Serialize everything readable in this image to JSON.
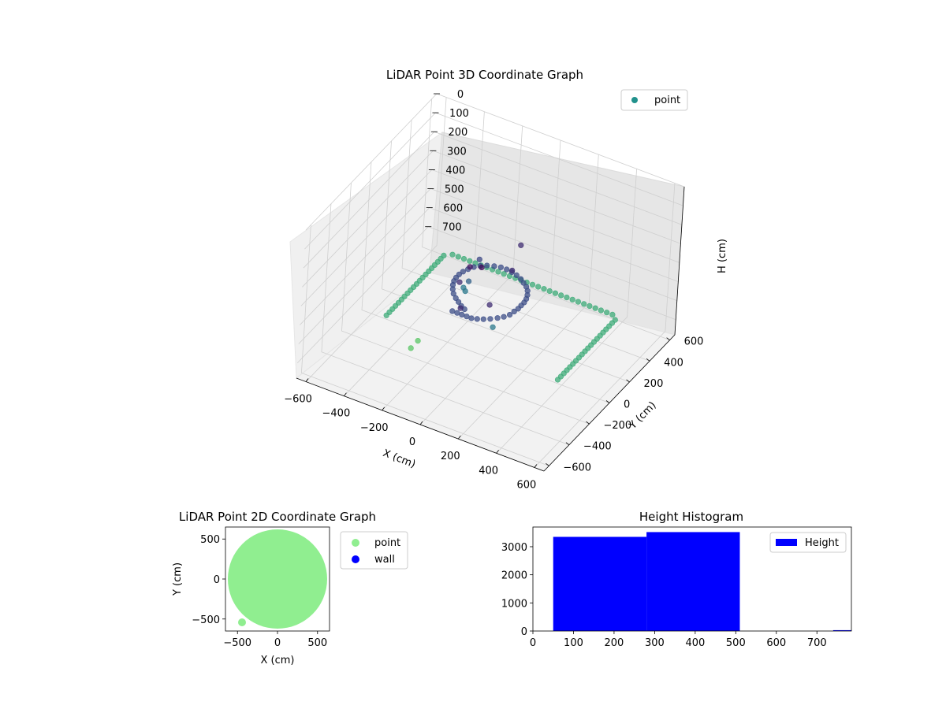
{
  "chart_data": [
    {
      "type": "scatter3d",
      "title": "LiDAR Point 3D Coordinate Graph",
      "xlabel": "X (cm)",
      "ylabel": "Y (cm)",
      "zlabel": "H (cm)",
      "xlim": [
        -650,
        650
      ],
      "ylim": [
        -650,
        650
      ],
      "zlim": [
        0,
        780
      ],
      "z_inverted": true,
      "xticks": [
        "−600",
        "−400",
        "−200",
        "0",
        "200",
        "400",
        "600"
      ],
      "yticks": [
        "−600",
        "−400",
        "−200",
        "0",
        "200",
        "400",
        "600"
      ],
      "zticks": [
        "0",
        "100",
        "200",
        "300",
        "400",
        "500",
        "600",
        "700"
      ],
      "legend": {
        "entries": [
          "point"
        ],
        "placement": "top-right"
      },
      "colormap": "viridis",
      "series": [
        {
          "name": "point",
          "color": "#21918c",
          "points": [
            [
              -280,
              -150,
              720
            ],
            [
              90,
              -130,
              520
            ],
            [
              -140,
              60,
              470
            ],
            [
              -140,
              160,
              410
            ],
            [
              -280,
              -220,
              720
            ],
            [
              -170,
              70,
              520
            ],
            [
              -150,
              50,
              520
            ],
            [
              -60,
              -260,
              420
            ],
            [
              -35,
              -260,
              420
            ],
            [
              -10,
              -260,
              420
            ],
            [
              15,
              -260,
              420
            ],
            [
              40,
              -260,
              420
            ],
            [
              65,
              -250,
              420
            ],
            [
              90,
              -235,
              420
            ],
            [
              115,
              -215,
              420
            ],
            [
              140,
              -190,
              420
            ],
            [
              160,
              -165,
              420
            ],
            [
              175,
              -135,
              420
            ],
            [
              180,
              -100,
              420
            ],
            [
              185,
              -70,
              420
            ],
            [
              185,
              -40,
              420
            ],
            [
              185,
              -10,
              420
            ],
            [
              180,
              20,
              420
            ],
            [
              170,
              50,
              420
            ],
            [
              155,
              80,
              420
            ],
            [
              135,
              105,
              420
            ],
            [
              110,
              125,
              420
            ],
            [
              85,
              145,
              420
            ],
            [
              55,
              160,
              420
            ],
            [
              25,
              170,
              420
            ],
            [
              -5,
              175,
              420
            ],
            [
              -35,
              175,
              420
            ],
            [
              -65,
              165,
              420
            ],
            [
              -95,
              150,
              420
            ],
            [
              -120,
              130,
              420
            ],
            [
              -140,
              105,
              420
            ],
            [
              -155,
              75,
              420
            ],
            [
              -165,
              45,
              420
            ],
            [
              -170,
              15,
              420
            ],
            [
              -170,
              -15,
              420
            ],
            [
              -165,
              -45,
              420
            ],
            [
              -155,
              -75,
              420
            ],
            [
              -140,
              -105,
              420
            ],
            [
              -120,
              -135,
              420
            ],
            [
              -95,
              -160,
              420
            ],
            [
              -70,
              -180,
              420
            ],
            [
              -45,
              -200,
              420
            ],
            [
              -20,
              -215,
              420
            ],
            [
              100,
              -200,
              360
            ],
            [
              -100,
              -120,
              360
            ],
            [
              60,
              100,
              360
            ],
            [
              0,
              -300,
              360
            ],
            [
              0,
              300,
              360
            ],
            [
              -30,
              -40,
              300
            ],
            [
              -90,
              -40,
              320
            ],
            [
              -450,
              -150,
              650
            ],
            [
              -450,
              -120,
              650
            ],
            [
              -450,
              -90,
              650
            ],
            [
              -450,
              -60,
              650
            ],
            [
              -450,
              -30,
              650
            ],
            [
              -450,
              0,
              650
            ],
            [
              -450,
              30,
              650
            ],
            [
              -450,
              60,
              650
            ],
            [
              -450,
              90,
              650
            ],
            [
              -450,
              120,
              650
            ],
            [
              -450,
              150,
              650
            ],
            [
              -450,
              180,
              650
            ],
            [
              -450,
              210,
              650
            ],
            [
              -450,
              240,
              650
            ],
            [
              -450,
              270,
              650
            ],
            [
              -450,
              300,
              650
            ],
            [
              -450,
              330,
              650
            ],
            [
              -450,
              360,
              650
            ],
            [
              -450,
              390,
              650
            ],
            [
              -450,
              420,
              650
            ],
            [
              -420,
              450,
              650
            ],
            [
              -390,
              450,
              650
            ],
            [
              -360,
              450,
              650
            ],
            [
              -330,
              450,
              650
            ],
            [
              -300,
              450,
              650
            ],
            [
              -270,
              450,
              650
            ],
            [
              -240,
              450,
              650
            ],
            [
              -210,
              450,
              650
            ],
            [
              -180,
              450,
              650
            ],
            [
              -150,
              450,
              650
            ],
            [
              -120,
              450,
              650
            ],
            [
              -90,
              450,
              650
            ],
            [
              -60,
              450,
              650
            ],
            [
              -30,
              450,
              650
            ],
            [
              0,
              450,
              650
            ],
            [
              30,
              450,
              650
            ],
            [
              60,
              450,
              650
            ],
            [
              90,
              450,
              650
            ],
            [
              120,
              450,
              650
            ],
            [
              150,
              450,
              650
            ],
            [
              180,
              450,
              650
            ],
            [
              210,
              450,
              650
            ],
            [
              240,
              450,
              650
            ],
            [
              270,
              450,
              650
            ],
            [
              300,
              450,
              650
            ],
            [
              330,
              450,
              650
            ],
            [
              360,
              450,
              650
            ],
            [
              390,
              450,
              650
            ],
            [
              420,
              450,
              650
            ],
            [
              450,
              420,
              650
            ],
            [
              450,
              390,
              650
            ],
            [
              450,
              360,
              650
            ],
            [
              450,
              330,
              650
            ],
            [
              450,
              300,
              650
            ],
            [
              450,
              270,
              650
            ],
            [
              450,
              240,
              650
            ],
            [
              450,
              210,
              650
            ],
            [
              450,
              180,
              650
            ],
            [
              450,
              150,
              650
            ],
            [
              450,
              120,
              650
            ],
            [
              450,
              90,
              650
            ],
            [
              450,
              60,
              650
            ],
            [
              450,
              30,
              650
            ],
            [
              450,
              0,
              650
            ],
            [
              450,
              -30,
              650
            ],
            [
              450,
              -60,
              650
            ],
            [
              450,
              -90,
              650
            ],
            [
              450,
              -120,
              650
            ],
            [
              450,
              -150,
              650
            ]
          ]
        }
      ]
    },
    {
      "type": "scatter",
      "title": "LiDAR Point 2D Coordinate Graph",
      "xlabel": "X (cm)",
      "ylabel": "Y (cm)",
      "xlim": [
        -650,
        650
      ],
      "ylim": [
        -650,
        650
      ],
      "xticks": [
        "−500",
        "0",
        "500"
      ],
      "yticks": [
        "−500",
        "0",
        "500"
      ],
      "legend": {
        "entries": [
          "point",
          "wall"
        ],
        "placement": "outside-right"
      },
      "series": [
        {
          "name": "point",
          "color": "#90ee90",
          "shape": "disk",
          "radius": 620
        },
        {
          "name": "wall",
          "color": "#0000ff",
          "points": []
        }
      ]
    },
    {
      "type": "bar",
      "title": "Height Histogram",
      "xlabel": "",
      "ylabel": "",
      "xlim": [
        0,
        785
      ],
      "ylim": [
        0,
        3700
      ],
      "xticks": [
        "0",
        "100",
        "200",
        "300",
        "400",
        "500",
        "600",
        "700"
      ],
      "yticks": [
        "0",
        "1000",
        "2000",
        "3000"
      ],
      "legend": {
        "entries": [
          "Height"
        ],
        "placement": "top-right"
      },
      "series": [
        {
          "name": "Height",
          "color": "#0000ff",
          "bins": [
            {
              "x0": 50,
              "x1": 280,
              "count": 3350
            },
            {
              "x0": 280,
              "x1": 510,
              "count": 3520
            },
            {
              "x0": 510,
              "x1": 740,
              "count": 0
            },
            {
              "x0": 740,
              "x1": 785,
              "count": 30
            }
          ]
        }
      ]
    }
  ]
}
